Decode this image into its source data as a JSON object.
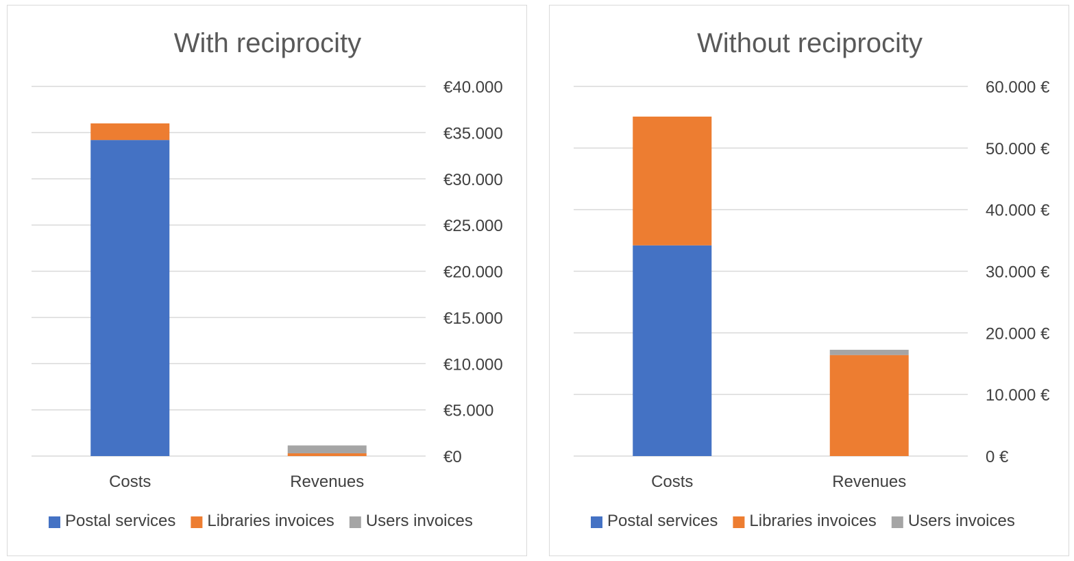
{
  "chart_data": [
    {
      "type": "bar",
      "stacked": true,
      "title": "With reciprocity",
      "categories": [
        "Costs",
        "Revenues"
      ],
      "series": [
        {
          "name": "Postal services",
          "color": "#4472C4",
          "values": [
            34200,
            0
          ]
        },
        {
          "name": "Libraries invoices",
          "color": "#ED7D31",
          "values": [
            1800,
            300
          ]
        },
        {
          "name": "Users invoices",
          "color": "#A5A5A5",
          "values": [
            0,
            850
          ]
        }
      ],
      "ylim": [
        0,
        40000
      ],
      "yticks": [
        0,
        5000,
        10000,
        15000,
        20000,
        25000,
        30000,
        35000,
        40000
      ],
      "ytick_labels": [
        "€0",
        "€5.000",
        "€10.000",
        "€15.000",
        "€20.000",
        "€25.000",
        "€30.000",
        "€35.000",
        "€40.000"
      ],
      "y_axis_side": "right",
      "grid": true,
      "legend": "bottom"
    },
    {
      "type": "bar",
      "stacked": true,
      "title": "Without reciprocity",
      "categories": [
        "Costs",
        "Revenues"
      ],
      "series": [
        {
          "name": "Postal services",
          "color": "#4472C4",
          "values": [
            34200,
            0
          ]
        },
        {
          "name": "Libraries invoices",
          "color": "#ED7D31",
          "values": [
            20900,
            16400
          ]
        },
        {
          "name": "Users invoices",
          "color": "#A5A5A5",
          "values": [
            0,
            850
          ]
        }
      ],
      "ylim": [
        0,
        60000
      ],
      "yticks": [
        0,
        10000,
        20000,
        30000,
        40000,
        50000,
        60000
      ],
      "ytick_labels": [
        "0 €",
        "10.000 €",
        "20.000 €",
        "30.000 €",
        "40.000 €",
        "50.000 €",
        "60.000 €"
      ],
      "y_axis_side": "right",
      "grid": true,
      "legend": "bottom"
    }
  ]
}
